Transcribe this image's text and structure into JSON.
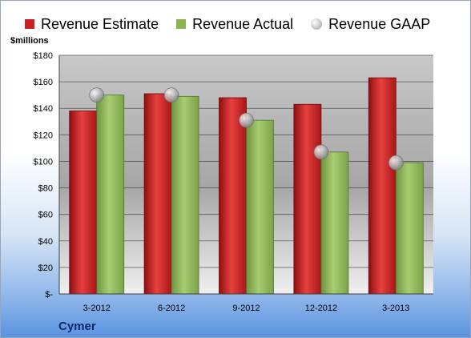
{
  "chart_data": {
    "type": "bar",
    "categories": [
      "3-2012",
      "6-2012",
      "9-2012",
      "12-2012",
      "3-2013"
    ],
    "series": [
      {
        "name": "Revenue Estimate",
        "kind": "bar",
        "values": [
          138,
          151,
          148,
          143,
          163
        ],
        "color": "#cc1f1f"
      },
      {
        "name": "Revenue Actual",
        "kind": "bar",
        "values": [
          150,
          149,
          131,
          107,
          99
        ],
        "color": "#8ab552"
      },
      {
        "name": "Revenue GAAP",
        "kind": "marker",
        "values": [
          150,
          150,
          131,
          107,
          99
        ],
        "color": "#b8b8bc"
      }
    ],
    "ylabel": "$millions",
    "ylim": [
      0,
      180
    ],
    "yticks": [
      0,
      20,
      40,
      60,
      80,
      100,
      120,
      140,
      160,
      180
    ],
    "ytick_labels": [
      "$-",
      "$20",
      "$40",
      "$60",
      "$80",
      "$100",
      "$120",
      "$140",
      "$160",
      "$180"
    ],
    "grid": true,
    "legend_position": "top"
  },
  "footer": {
    "company": "Cymer"
  }
}
